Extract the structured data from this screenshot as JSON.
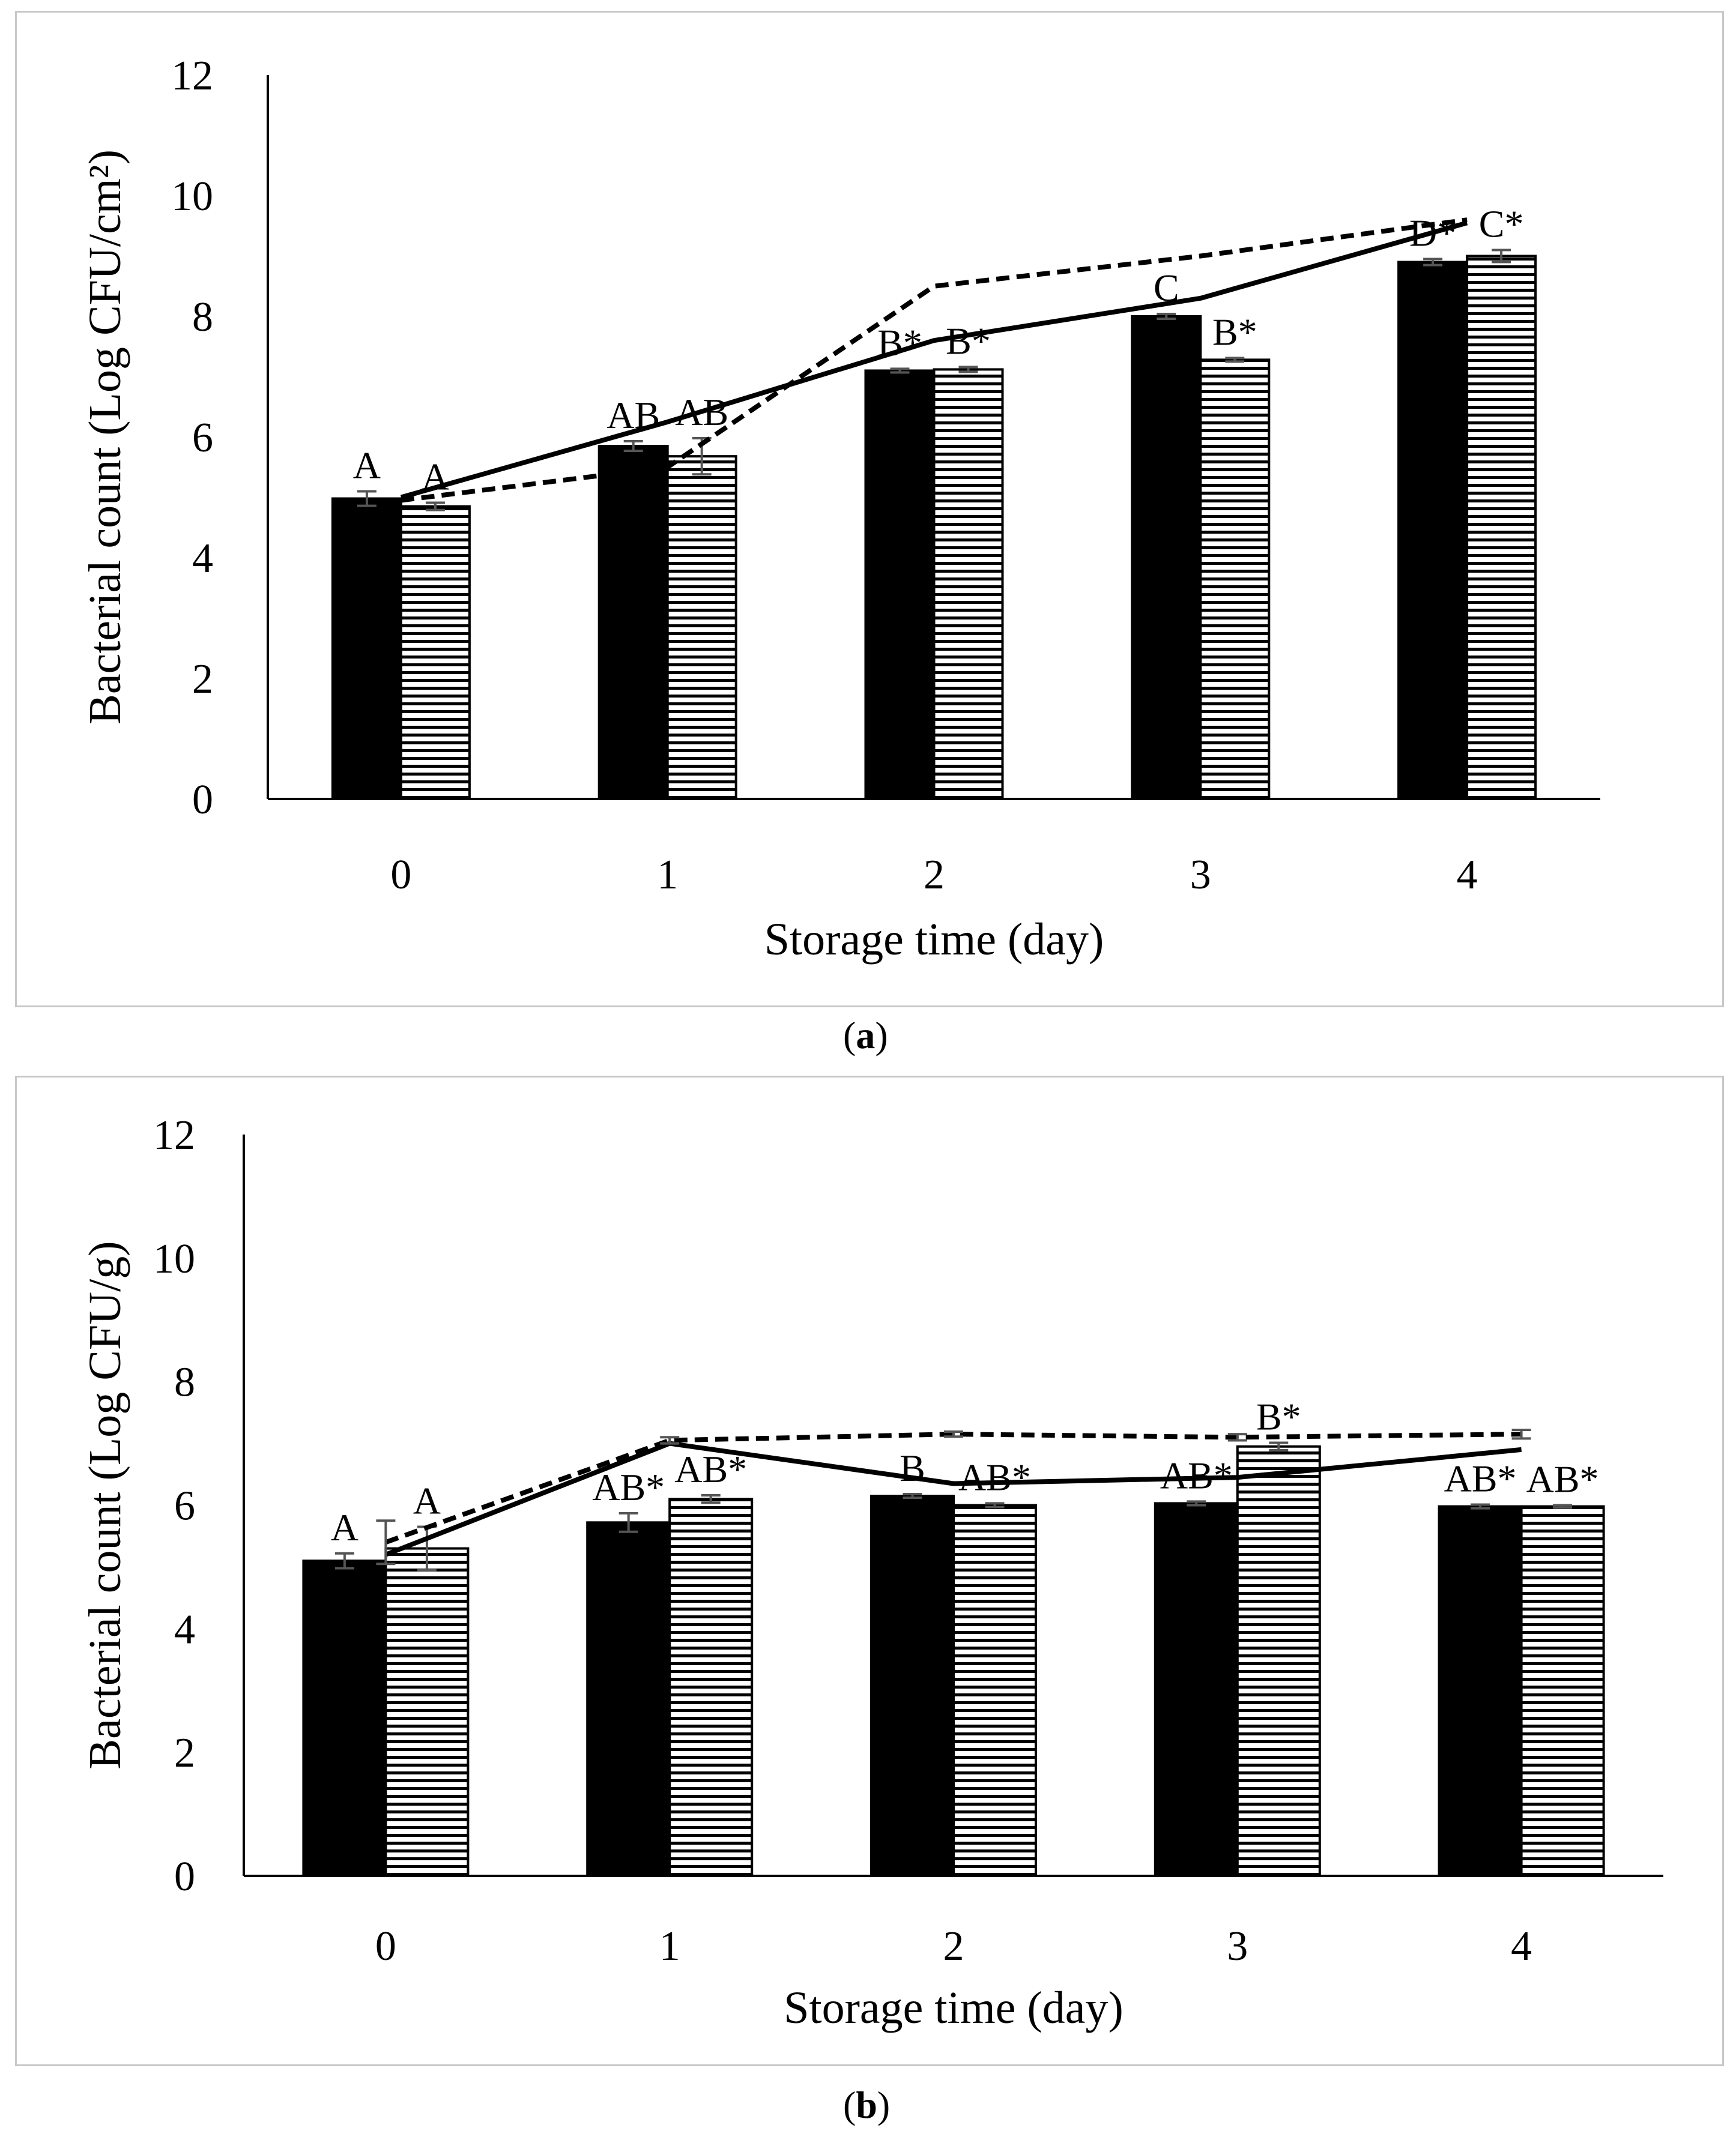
{
  "chart_data": [
    {
      "type": "bar",
      "panel": "a",
      "caption_open": "(",
      "caption_letter": "a",
      "caption_close": ")",
      "ylabel": "Bacterial count (Log CFU/cm²)",
      "xlabel": "Storage time (day)",
      "ylim": [
        0,
        12
      ],
      "yticks": [
        0,
        2,
        4,
        6,
        8,
        10,
        12
      ],
      "categories": [
        "0",
        "1",
        "2",
        "3",
        "4"
      ],
      "series": [
        {
          "name": "solid-bar",
          "style": "solid",
          "values": [
            4.98,
            5.85,
            7.1,
            8.0,
            8.9
          ],
          "errors": [
            0.12,
            0.08,
            0.03,
            0.04,
            0.05
          ],
          "labels": [
            "A",
            "AB",
            "B*",
            "C",
            "D*"
          ]
        },
        {
          "name": "striped-bar",
          "style": "striped",
          "values": [
            4.85,
            5.68,
            7.12,
            7.28,
            9.0
          ],
          "errors": [
            0.06,
            0.3,
            0.04,
            0.03,
            0.1
          ],
          "labels": [
            "A",
            "AB",
            "B*",
            "B*",
            "C*"
          ]
        }
      ],
      "lines": [
        {
          "name": "solid-line",
          "style": "solid",
          "values": [
            5.0,
            6.25,
            7.6,
            8.3,
            9.55
          ]
        },
        {
          "name": "dashed-line",
          "style": "dashed",
          "values": [
            4.95,
            5.5,
            8.5,
            9.0,
            9.6
          ]
        }
      ]
    },
    {
      "type": "bar",
      "panel": "b",
      "caption_open": "(",
      "caption_letter": "b",
      "caption_close": ")",
      "ylabel": "Bacterial count (Log CFU/g)",
      "xlabel": "Storage time (day)",
      "ylim": [
        0,
        12
      ],
      "yticks": [
        0,
        2,
        4,
        6,
        8,
        10,
        12
      ],
      "categories": [
        "0",
        "1",
        "2",
        "3",
        "4"
      ],
      "series": [
        {
          "name": "solid-bar",
          "style": "solid",
          "values": [
            5.1,
            5.72,
            6.15,
            6.03,
            5.98
          ],
          "errors": [
            0.12,
            0.15,
            0.03,
            0.03,
            0.03
          ],
          "labels": [
            "A",
            "AB*",
            "B",
            "AB*",
            "AB*"
          ]
        },
        {
          "name": "striped-bar",
          "style": "striped",
          "values": [
            5.3,
            6.1,
            6.0,
            6.95,
            5.98
          ],
          "errors": [
            0.35,
            0.06,
            0.03,
            0.06,
            0.02
          ],
          "labels": [
            "A",
            "AB*",
            "AB*",
            "B*",
            "AB*"
          ]
        }
      ],
      "lines": [
        {
          "name": "solid-line",
          "style": "solid",
          "values": [
            5.2,
            7.0,
            6.35,
            6.45,
            6.9
          ]
        },
        {
          "name": "dashed-line",
          "style": "dashed",
          "values": [
            5.4,
            7.05,
            7.15,
            7.1,
            7.15
          ],
          "errors": [
            0.35,
            0.05,
            0.04,
            0.05,
            0.07
          ]
        }
      ]
    }
  ]
}
